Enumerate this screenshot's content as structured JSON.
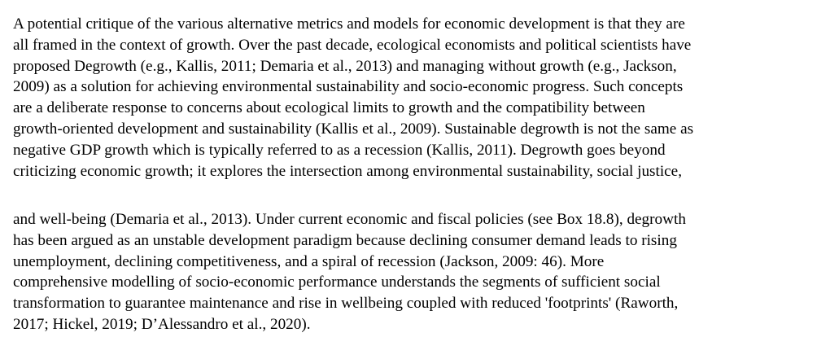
{
  "document": {
    "paragraph_1": [
      "A potential critique of the various alternative metrics and models for economic development is that they are",
      "all framed in the context of growth. Over the past decade, ecological economists and political scientists have",
      "proposed Degrowth (e.g., Kallis, 2011; Demaria et al., 2013) and managing without growth (e.g., Jackson,",
      "2009) as a solution for achieving environmental sustainability and socio-economic progress. Such concepts",
      "are a deliberate response to concerns about ecological limits to growth and the compatibility between",
      "growth-oriented development and sustainability (Kallis et al., 2009). Sustainable degrowth is not the same as",
      "negative GDP growth which is typically referred to as a recession (Kallis, 2011). Degrowth goes beyond",
      "criticizing economic growth; it explores the intersection among environmental sustainability, social justice,"
    ],
    "paragraph_2": [
      "and well-being (Demaria et al., 2013). Under current economic and fiscal policies (see Box 18.8), degrowth",
      "has been argued as an unstable development paradigm because declining consumer demand leads to rising",
      "unemployment, declining competitiveness, and a spiral of recession (Jackson, 2009: 46). More",
      "comprehensive modelling of socio-economic performance understands the segments of sufficient social",
      "transformation to guarantee maintenance and rise in wellbeing coupled with reduced 'footprints' (Raworth,",
      "2017; Hickel, 2019; D’Alessandro et al., 2020)."
    ]
  }
}
